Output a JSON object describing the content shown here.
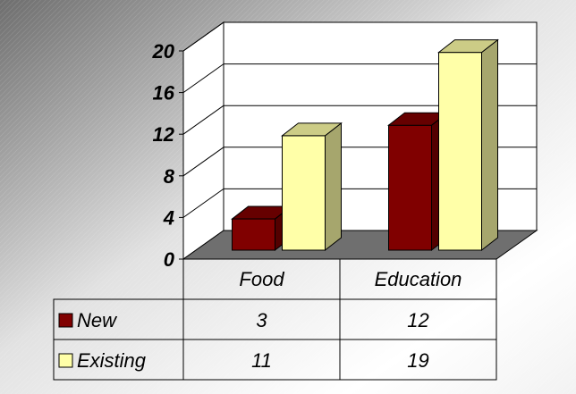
{
  "chart_data": {
    "type": "bar",
    "categories": [
      "Food",
      "Education"
    ],
    "series": [
      {
        "name": "New",
        "values": [
          3,
          12
        ],
        "color": "#800000"
      },
      {
        "name": "Existing",
        "values": [
          11,
          19
        ],
        "color": "#FFFFA8"
      }
    ],
    "yticks": [
      "0",
      "4",
      "8",
      "12",
      "16",
      "20"
    ],
    "ylim": [
      0,
      20
    ],
    "grid": true,
    "legend": "data-table-left",
    "data_table": true,
    "background": "silver-gradient"
  }
}
